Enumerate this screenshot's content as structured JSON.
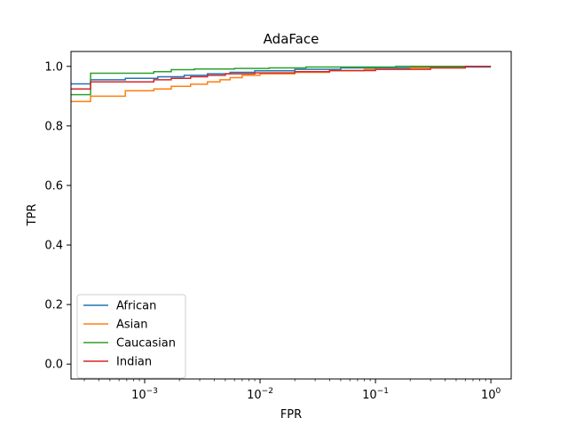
{
  "chart_data": {
    "type": "line",
    "title": "AdaFace",
    "xlabel": "FPR",
    "ylabel": "TPR",
    "x_scale": "log",
    "xlim": [
      0.00023,
      1.5
    ],
    "ylim": [
      -0.05,
      1.05
    ],
    "grid": false,
    "legend_position": "lower-left",
    "x_tick_labels": [
      "10^-3",
      "10^-2",
      "10^-1",
      "10^0"
    ],
    "x_tick_values": [
      0.001,
      0.01,
      0.1,
      1
    ],
    "y_tick_labels": [
      "0.0",
      "0.2",
      "0.4",
      "0.6",
      "0.8",
      "1.0"
    ],
    "y_tick_values": [
      0.0,
      0.2,
      0.4,
      0.6,
      0.8,
      1.0
    ],
    "series": [
      {
        "name": "African",
        "color": "#1f77b4",
        "points": [
          [
            0.00023,
            0.941
          ],
          [
            0.00034,
            0.941
          ],
          [
            0.00034,
            0.955
          ],
          [
            0.00068,
            0.955
          ],
          [
            0.00068,
            0.96
          ],
          [
            0.0013,
            0.96
          ],
          [
            0.0013,
            0.965
          ],
          [
            0.0022,
            0.965
          ],
          [
            0.0022,
            0.97
          ],
          [
            0.0035,
            0.97
          ],
          [
            0.0035,
            0.975
          ],
          [
            0.0055,
            0.975
          ],
          [
            0.0055,
            0.98
          ],
          [
            0.009,
            0.98
          ],
          [
            0.009,
            0.985
          ],
          [
            0.02,
            0.985
          ],
          [
            0.02,
            0.99
          ],
          [
            0.05,
            0.99
          ],
          [
            0.05,
            0.995
          ],
          [
            0.2,
            0.995
          ],
          [
            0.2,
            0.998
          ],
          [
            1.0,
            0.998
          ]
        ]
      },
      {
        "name": "Asian",
        "color": "#ff7f0e",
        "points": [
          [
            0.00023,
            0.882
          ],
          [
            0.00034,
            0.882
          ],
          [
            0.00034,
            0.9
          ],
          [
            0.00068,
            0.9
          ],
          [
            0.00068,
            0.918
          ],
          [
            0.0012,
            0.918
          ],
          [
            0.0012,
            0.924
          ],
          [
            0.0017,
            0.924
          ],
          [
            0.0017,
            0.933
          ],
          [
            0.0025,
            0.933
          ],
          [
            0.0025,
            0.94
          ],
          [
            0.0035,
            0.94
          ],
          [
            0.0035,
            0.948
          ],
          [
            0.0045,
            0.948
          ],
          [
            0.0045,
            0.955
          ],
          [
            0.0055,
            0.955
          ],
          [
            0.0055,
            0.962
          ],
          [
            0.007,
            0.962
          ],
          [
            0.007,
            0.97
          ],
          [
            0.01,
            0.97
          ],
          [
            0.01,
            0.975
          ],
          [
            0.02,
            0.975
          ],
          [
            0.02,
            0.98
          ],
          [
            0.04,
            0.98
          ],
          [
            0.04,
            0.985
          ],
          [
            0.08,
            0.985
          ],
          [
            0.08,
            0.99
          ],
          [
            0.2,
            0.99
          ],
          [
            0.2,
            0.995
          ],
          [
            0.6,
            0.995
          ],
          [
            0.6,
            1.0
          ],
          [
            1.0,
            1.0
          ]
        ]
      },
      {
        "name": "Caucasian",
        "color": "#2ca02c",
        "points": [
          [
            0.00023,
            0.905
          ],
          [
            0.00034,
            0.905
          ],
          [
            0.00034,
            0.977
          ],
          [
            0.0012,
            0.977
          ],
          [
            0.0012,
            0.982
          ],
          [
            0.0017,
            0.982
          ],
          [
            0.0017,
            0.989
          ],
          [
            0.0027,
            0.989
          ],
          [
            0.0027,
            0.991
          ],
          [
            0.006,
            0.991
          ],
          [
            0.006,
            0.993
          ],
          [
            0.012,
            0.993
          ],
          [
            0.012,
            0.995
          ],
          [
            0.025,
            0.995
          ],
          [
            0.025,
            0.998
          ],
          [
            0.15,
            0.998
          ],
          [
            0.15,
            1.0
          ],
          [
            1.0,
            1.0
          ]
        ]
      },
      {
        "name": "Indian",
        "color": "#d62728",
        "points": [
          [
            0.00023,
            0.924
          ],
          [
            0.00034,
            0.924
          ],
          [
            0.00034,
            0.948
          ],
          [
            0.0012,
            0.948
          ],
          [
            0.0012,
            0.955
          ],
          [
            0.0017,
            0.955
          ],
          [
            0.0017,
            0.96
          ],
          [
            0.0025,
            0.96
          ],
          [
            0.0025,
            0.965
          ],
          [
            0.0035,
            0.965
          ],
          [
            0.0035,
            0.97
          ],
          [
            0.005,
            0.97
          ],
          [
            0.005,
            0.975
          ],
          [
            0.009,
            0.975
          ],
          [
            0.009,
            0.978
          ],
          [
            0.02,
            0.978
          ],
          [
            0.02,
            0.982
          ],
          [
            0.04,
            0.982
          ],
          [
            0.04,
            0.986
          ],
          [
            0.1,
            0.986
          ],
          [
            0.1,
            0.99
          ],
          [
            0.3,
            0.99
          ],
          [
            0.3,
            0.995
          ],
          [
            0.6,
            0.995
          ],
          [
            0.6,
            1.0
          ],
          [
            1.0,
            1.0
          ]
        ]
      }
    ]
  }
}
